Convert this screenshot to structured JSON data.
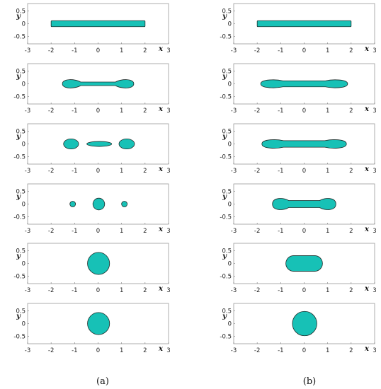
{
  "colors": {
    "fill": "#17c1b6",
    "edge": "#1f2d2b",
    "frame": "#9a9a9a"
  },
  "axes": {
    "x_label": "x",
    "y_label": "y",
    "x_ticks": [
      "-3",
      "-2",
      "-1",
      "0",
      "1",
      "2",
      "3"
    ],
    "y_ticks": [
      "0.5",
      "0",
      "-0.5"
    ],
    "x_tick_values": [
      -3,
      -2,
      -1,
      0,
      1,
      2,
      3
    ],
    "y_tick_values": [
      0.5,
      0,
      -0.5
    ],
    "xlim": [
      -3,
      3
    ],
    "ylim": [
      -0.8,
      0.8
    ]
  },
  "captions": {
    "left": "(a)",
    "right": "(b)"
  },
  "panels": {
    "a": [
      [
        {
          "type": "rect",
          "x0": -2,
          "x1": 2,
          "half_height": 0.12
        }
      ],
      [
        {
          "type": "dumbbell",
          "x0": -1.52,
          "x1": 1.52,
          "end_half_height": 0.17,
          "neck_half_height": 0.07
        }
      ],
      [
        {
          "type": "ellipse",
          "cx": -1.15,
          "cy": 0,
          "rx": 0.32,
          "ry": 0.2
        },
        {
          "type": "ellipse",
          "cx": 0.05,
          "cy": 0,
          "rx": 0.53,
          "ry": 0.1
        },
        {
          "type": "ellipse",
          "cx": 1.22,
          "cy": 0,
          "rx": 0.33,
          "ry": 0.2
        }
      ],
      [
        {
          "type": "circle",
          "cx": -1.08,
          "cy": 0,
          "r": 0.12
        },
        {
          "type": "circle",
          "cx": 0.03,
          "cy": 0,
          "r": 0.25
        },
        {
          "type": "circle",
          "cx": 1.12,
          "cy": 0,
          "r": 0.12
        }
      ],
      [
        {
          "type": "circle",
          "cx": 0.02,
          "cy": 0,
          "r": 0.47
        }
      ],
      [
        {
          "type": "circle",
          "cx": 0.02,
          "cy": 0,
          "r": 0.47
        }
      ]
    ],
    "b": [
      [
        {
          "type": "rect",
          "x0": -2,
          "x1": 2,
          "half_height": 0.12
        }
      ],
      [
        {
          "type": "dumbbell",
          "x0": -1.85,
          "x1": 1.85,
          "end_half_height": 0.15,
          "neck_half_height": 0.12
        }
      ],
      [
        {
          "type": "dumbbell",
          "x0": -1.8,
          "x1": 1.8,
          "end_half_height": 0.16,
          "neck_half_height": 0.13
        }
      ],
      [
        {
          "type": "dumbbell",
          "x0": -1.35,
          "x1": 1.35,
          "end_half_height": 0.22,
          "neck_half_height": 0.14
        }
      ],
      [
        {
          "type": "stadium",
          "x0": -0.78,
          "x1": 0.78,
          "half_height": 0.31
        }
      ],
      [
        {
          "type": "circle",
          "cx": 0.02,
          "cy": 0,
          "r": 0.52
        }
      ]
    ]
  }
}
